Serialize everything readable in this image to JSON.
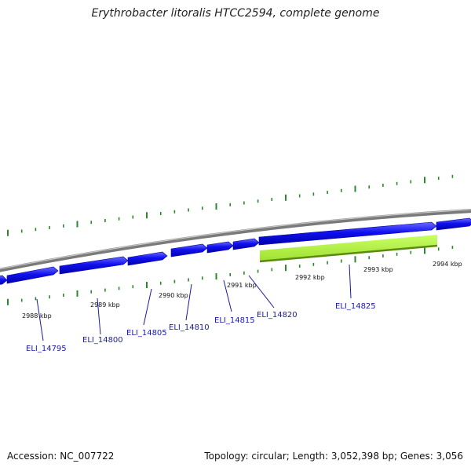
{
  "title": "Erythrobacter litoralis HTCC2594, complete genome",
  "footer": {
    "accession": "Accession: NC_007722",
    "topology": "Topology: circular; Length: 3,052,398 bp; Genes: 3,056"
  },
  "colors": {
    "backbone": "#888888",
    "forward_gene": "#1010ee",
    "reverse_gene": "#aaee33",
    "tick": "#2a8a2a",
    "label": "#1a1aaa"
  },
  "ruler": {
    "labels": [
      "2988 kbp",
      "2989 kbp",
      "2990 kbp",
      "2991 kbp",
      "2992 kbp",
      "2993 kbp",
      "2994 kbp"
    ]
  },
  "genes": [
    {
      "locus": "ELI_14795",
      "strand": "+"
    },
    {
      "locus": "ELI_14800",
      "strand": "+"
    },
    {
      "locus": "ELI_14805",
      "strand": "+"
    },
    {
      "locus": "ELI_14810",
      "strand": "+"
    },
    {
      "locus": "ELI_14815",
      "strand": "+"
    },
    {
      "locus": "ELI_14820",
      "strand": "+"
    },
    {
      "locus": "ELI_14825",
      "strand": "-"
    }
  ]
}
